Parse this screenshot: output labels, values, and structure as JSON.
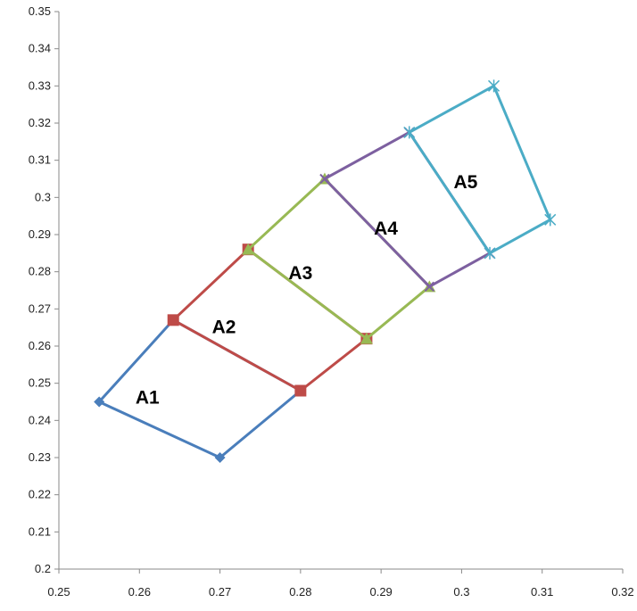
{
  "chart_data": {
    "type": "scatter",
    "title": "",
    "xlabel": "",
    "ylabel": "",
    "xlim": [
      0.25,
      0.32
    ],
    "ylim": [
      0.2,
      0.35
    ],
    "x_ticks": [
      "0.25",
      "0.26",
      "0.27",
      "0.28",
      "0.29",
      "0.3",
      "0.31",
      "0.32"
    ],
    "y_ticks": [
      "0.2",
      "0.21",
      "0.22",
      "0.23",
      "0.24",
      "0.25",
      "0.26",
      "0.27",
      "0.28",
      "0.29",
      "0.3",
      "0.31",
      "0.32",
      "0.33",
      "0.34",
      "0.35"
    ],
    "grid": false,
    "legend": "none",
    "series": [
      {
        "color": "#4a7ebb",
        "marker": "diamond",
        "points": [
          [
            0.2642,
            0.267
          ],
          [
            0.255,
            0.245
          ],
          [
            0.27,
            0.23
          ],
          [
            0.28,
            0.248
          ],
          [
            0.2642,
            0.267
          ]
        ]
      },
      {
        "color": "#be4b48",
        "marker": "square",
        "points": [
          [
            0.2735,
            0.286
          ],
          [
            0.2642,
            0.267
          ],
          [
            0.28,
            0.248
          ],
          [
            0.2882,
            0.262
          ],
          [
            0.2735,
            0.286
          ]
        ]
      },
      {
        "color": "#98b954",
        "marker": "triangle",
        "points": [
          [
            0.283,
            0.305
          ],
          [
            0.2735,
            0.286
          ],
          [
            0.2882,
            0.262
          ],
          [
            0.296,
            0.276
          ],
          [
            0.283,
            0.305
          ]
        ]
      },
      {
        "color": "#7d60a0",
        "marker": "x",
        "points": [
          [
            0.2935,
            0.3175
          ],
          [
            0.283,
            0.305
          ],
          [
            0.296,
            0.276
          ],
          [
            0.3035,
            0.285
          ],
          [
            0.2935,
            0.3175
          ]
        ]
      },
      {
        "color": "#4bacc6",
        "marker": "star",
        "points": [
          [
            0.304,
            0.33
          ],
          [
            0.2935,
            0.3175
          ],
          [
            0.3035,
            0.285
          ],
          [
            0.311,
            0.294
          ],
          [
            0.304,
            0.33
          ]
        ]
      }
    ],
    "annotations": [
      {
        "text": "A1",
        "x": 0.261,
        "y": 0.2445
      },
      {
        "text": "A2",
        "x": 0.2705,
        "y": 0.2635
      },
      {
        "text": "A3",
        "x": 0.28,
        "y": 0.278
      },
      {
        "text": "A4",
        "x": 0.2906,
        "y": 0.29
      },
      {
        "text": "A5",
        "x": 0.3005,
        "y": 0.3025
      }
    ]
  }
}
